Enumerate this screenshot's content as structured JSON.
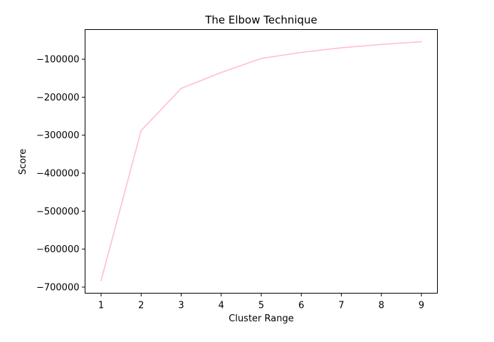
{
  "chart_data": {
    "type": "line",
    "title": "The Elbow Technique",
    "xlabel": "Cluster Range",
    "ylabel": "Score",
    "x": [
      1,
      2,
      3,
      4,
      5,
      6,
      7,
      8,
      9
    ],
    "series": [
      {
        "values": [
          -683000,
          -288000,
          -177000,
          -135000,
          -98000,
          -82000,
          -70000,
          -61000,
          -54000
        ],
        "color": "#ffc0cb"
      }
    ],
    "xlim": [
      0.6,
      9.4
    ],
    "ylim": [
      -716000,
      -22000
    ],
    "xticks": [
      1,
      2,
      3,
      4,
      5,
      6,
      7,
      8,
      9
    ],
    "yticks": [
      -700000,
      -600000,
      -500000,
      -400000,
      -300000,
      -200000,
      -100000
    ],
    "grid": false,
    "legend": "none"
  }
}
